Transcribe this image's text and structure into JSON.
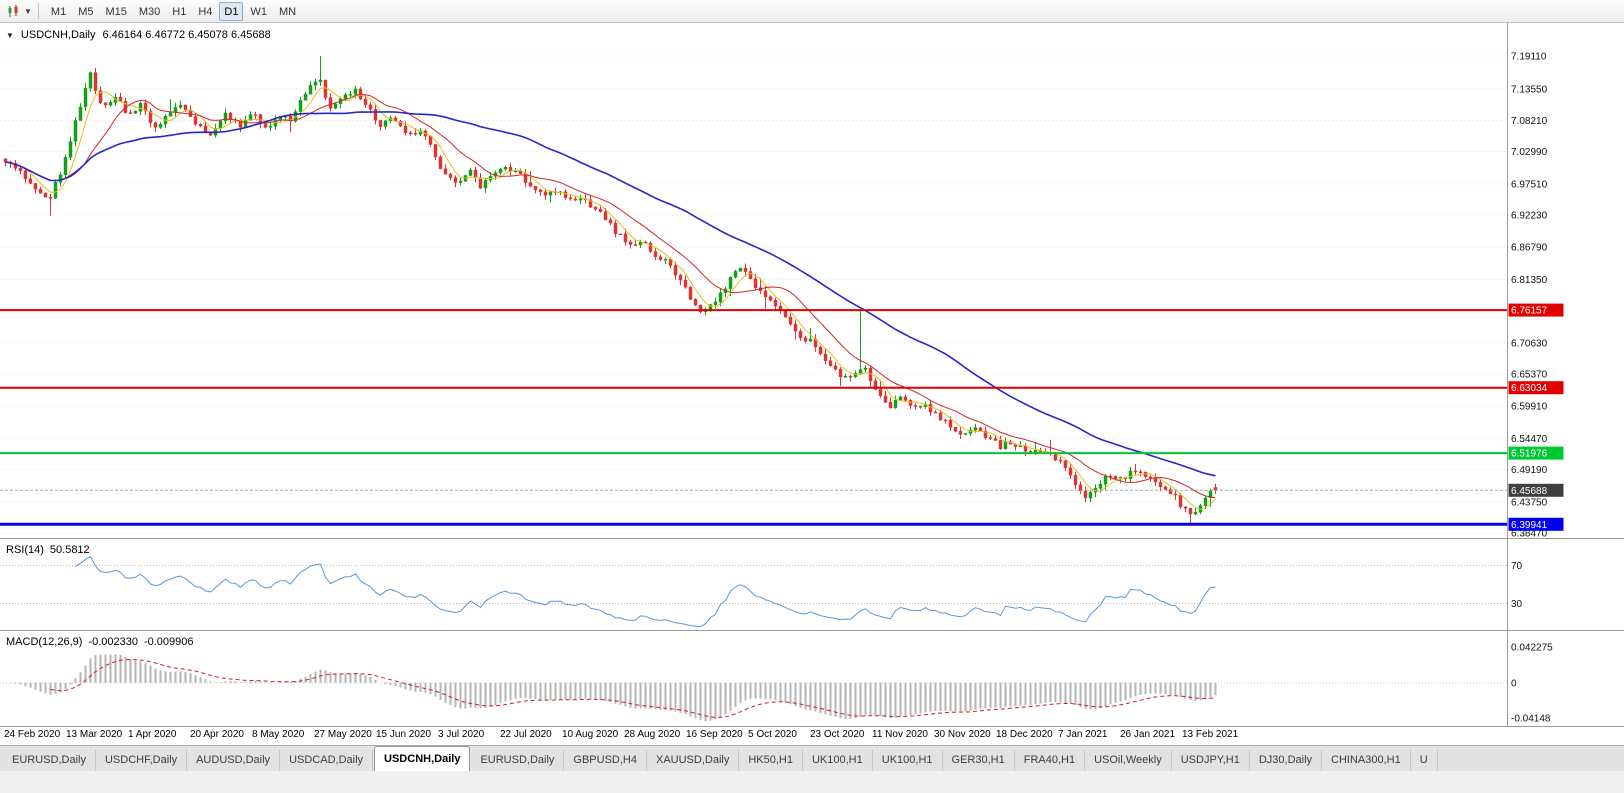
{
  "toolbar": {
    "timeframes": [
      "M1",
      "M5",
      "M15",
      "M30",
      "H1",
      "H4",
      "D1",
      "W1",
      "MN"
    ],
    "active": "D1"
  },
  "chart_title": {
    "symbol": "USDCNH,Daily",
    "ohlc": "6.46164 6.46772 6.45078 6.45688"
  },
  "chart_data": {
    "type": "candlestick",
    "symbol": "USDCNH",
    "period": "Daily",
    "last_ohlc": {
      "open": 6.46164,
      "high": 6.46772,
      "low": 6.45078,
      "close": 6.45688
    },
    "up_color": "#15a015",
    "down_color": "#d93636",
    "candle_count": 243,
    "price_ticks": [
      "7.19110",
      "7.13550",
      "7.08210",
      "7.02990",
      "6.97510",
      "6.92230",
      "6.86790",
      "6.81350",
      "6.70630",
      "6.65370",
      "6.59910",
      "6.54470",
      "6.49190",
      "6.43750",
      "6.38470"
    ],
    "date_ticks": [
      "24 Feb 2020",
      "13 Mar 2020",
      "1 Apr 2020",
      "20 Apr 2020",
      "8 May 2020",
      "27 May 2020",
      "15 Jun 2020",
      "3 Jul 2020",
      "22 Jul 2020",
      "10 Aug 2020",
      "28 Aug 2020",
      "16 Sep 2020",
      "5 Oct 2020",
      "23 Oct 2020",
      "11 Nov 2020",
      "30 Nov 2020",
      "18 Dec 2020",
      "7 Jan 2021",
      "26 Jan 2021",
      "13 Feb 2021"
    ],
    "levels": [
      {
        "text": "6.76157",
        "value": 6.76157,
        "color": "#e00000",
        "width": 2,
        "kind": "resistance"
      },
      {
        "text": "6.63034",
        "value": 6.63034,
        "color": "#e00000",
        "width": 2,
        "kind": "resistance"
      },
      {
        "text": "6.51976",
        "value": 6.51976,
        "color": "#00c832",
        "width": 2,
        "kind": "support"
      },
      {
        "text": "6.39941",
        "value": 6.39941,
        "color": "#0000ee",
        "width": 3,
        "kind": "support"
      }
    ],
    "bid_price": {
      "text": "6.45688",
      "value": 6.45688,
      "badge_color": "#3f3f3f"
    },
    "moving_averages": [
      {
        "period": 5,
        "color": "#e2c21e"
      },
      {
        "period": 13,
        "color": "#d02828"
      },
      {
        "period": 45,
        "color": "#2626c9"
      }
    ],
    "indicators": {
      "rsi": {
        "label": "RSI(14)",
        "value": "50.5812",
        "levels": [
          "70",
          "30"
        ],
        "color": "#5599dd"
      },
      "macd": {
        "label": "MACD(12,26,9)",
        "value_line": "-0.002330",
        "value_signal": "-0.009906",
        "axis": [
          "0.042275",
          "0",
          "-0.04148"
        ],
        "histogram_color": "#b4b4b4",
        "signal_color": "#d02020"
      }
    },
    "trend_anchors": [
      [
        0.0,
        7.015
      ],
      [
        0.0165,
        6.985
      ],
      [
        0.0355,
        6.945
      ],
      [
        0.0471,
        7.0
      ],
      [
        0.0603,
        7.1
      ],
      [
        0.0702,
        7.16
      ],
      [
        0.081,
        7.1
      ],
      [
        0.0909,
        7.125
      ],
      [
        0.1017,
        7.085
      ],
      [
        0.1116,
        7.115
      ],
      [
        0.1215,
        7.065
      ],
      [
        0.1322,
        7.09
      ],
      [
        0.1446,
        7.105
      ],
      [
        0.157,
        7.08
      ],
      [
        0.1694,
        7.055
      ],
      [
        0.1818,
        7.095
      ],
      [
        0.1942,
        7.075
      ],
      [
        0.2041,
        7.1
      ],
      [
        0.2149,
        7.065
      ],
      [
        0.2256,
        7.095
      ],
      [
        0.2355,
        7.08
      ],
      [
        0.2479,
        7.13
      ],
      [
        0.2587,
        7.155
      ],
      [
        0.2686,
        7.1
      ],
      [
        0.2785,
        7.125
      ],
      [
        0.2893,
        7.135
      ],
      [
        0.3,
        7.1
      ],
      [
        0.3099,
        7.075
      ],
      [
        0.3198,
        7.09
      ],
      [
        0.3306,
        7.06
      ],
      [
        0.3413,
        7.065
      ],
      [
        0.3512,
        7.04
      ],
      [
        0.3612,
        6.995
      ],
      [
        0.3719,
        6.975
      ],
      [
        0.3826,
        7.0
      ],
      [
        0.3926,
        6.97
      ],
      [
        0.4025,
        6.985
      ],
      [
        0.4132,
        7.005
      ],
      [
        0.424,
        6.99
      ],
      [
        0.4339,
        6.975
      ],
      [
        0.4438,
        6.955
      ],
      [
        0.4545,
        6.965
      ],
      [
        0.4653,
        6.945
      ],
      [
        0.4752,
        6.95
      ],
      [
        0.4851,
        6.935
      ],
      [
        0.4959,
        6.915
      ],
      [
        0.5066,
        6.89
      ],
      [
        0.5165,
        6.87
      ],
      [
        0.5264,
        6.88
      ],
      [
        0.5372,
        6.855
      ],
      [
        0.5479,
        6.84
      ],
      [
        0.5579,
        6.815
      ],
      [
        0.5661,
        6.78
      ],
      [
        0.5744,
        6.755
      ],
      [
        0.5843,
        6.775
      ],
      [
        0.595,
        6.8
      ],
      [
        0.6058,
        6.83
      ],
      [
        0.6157,
        6.815
      ],
      [
        0.6256,
        6.79
      ],
      [
        0.6364,
        6.77
      ],
      [
        0.6471,
        6.745
      ],
      [
        0.657,
        6.72
      ],
      [
        0.6669,
        6.705
      ],
      [
        0.6777,
        6.68
      ],
      [
        0.6884,
        6.655
      ],
      [
        0.6983,
        6.645
      ],
      [
        0.7083,
        6.67
      ],
      [
        0.719,
        6.63
      ],
      [
        0.7298,
        6.6
      ],
      [
        0.7397,
        6.61
      ],
      [
        0.7496,
        6.595
      ],
      [
        0.7603,
        6.6
      ],
      [
        0.7711,
        6.58
      ],
      [
        0.781,
        6.565
      ],
      [
        0.7909,
        6.55
      ],
      [
        0.8017,
        6.56
      ],
      [
        0.8124,
        6.545
      ],
      [
        0.8223,
        6.53
      ],
      [
        0.8322,
        6.54
      ],
      [
        0.843,
        6.52
      ],
      [
        0.8537,
        6.53
      ],
      [
        0.8636,
        6.515
      ],
      [
        0.8736,
        6.5
      ],
      [
        0.8843,
        6.47
      ],
      [
        0.8926,
        6.445
      ],
      [
        0.9008,
        6.465
      ],
      [
        0.9116,
        6.48
      ],
      [
        0.9215,
        6.475
      ],
      [
        0.9314,
        6.49
      ],
      [
        0.9421,
        6.48
      ],
      [
        0.9529,
        6.47
      ],
      [
        0.9628,
        6.455
      ],
      [
        0.9727,
        6.43
      ],
      [
        0.981,
        6.415
      ],
      [
        0.9893,
        6.44
      ],
      [
        1.0,
        6.457
      ]
    ],
    "wick_overrides": [
      {
        "t": 0.0355,
        "low": 6.921
      },
      {
        "t": 0.2587,
        "high": 7.1911
      },
      {
        "t": 0.7083,
        "high": 6.7615
      },
      {
        "t": 0.981,
        "low": 6.401
      }
    ]
  },
  "tabs": {
    "items": [
      "EURUSD,Daily",
      "USDCHF,Daily",
      "AUDUSD,Daily",
      "USDCAD,Daily",
      "USDCNH,Daily",
      "EURUSD,Daily",
      "GBPUSD,H4",
      "XAUUSD,Daily",
      "HK50,H1",
      "UK100,H1",
      "UK100,H1",
      "GER30,H1",
      "FRA40,H1",
      "USOil,Weekly",
      "USDJPY,H1",
      "DJ30,Daily",
      "CHINA300,H1",
      "U"
    ],
    "active_index": 4
  }
}
